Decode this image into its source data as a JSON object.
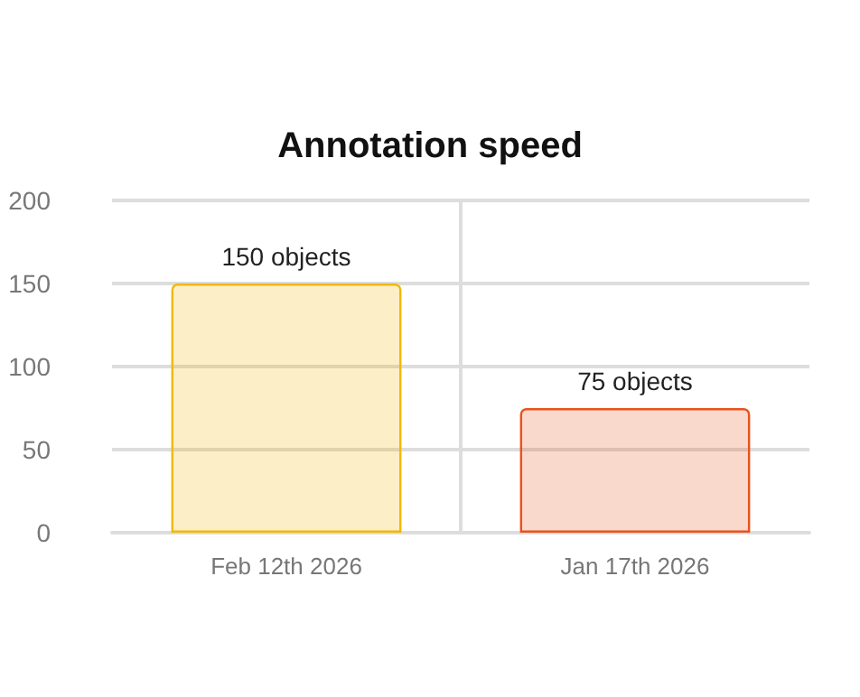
{
  "chart_data": {
    "type": "bar",
    "title": "Annotation speed",
    "categories": [
      "Feb 12th 2026",
      "Jan 17th 2026"
    ],
    "values": [
      150,
      75
    ],
    "colors": [
      "#f2b705",
      "#e8521c"
    ],
    "value_labels": [
      "150 objects",
      "75 objects"
    ],
    "ylim": [
      0,
      200
    ],
    "yticks": [
      0,
      50,
      100,
      150,
      200
    ],
    "grid": true
  }
}
